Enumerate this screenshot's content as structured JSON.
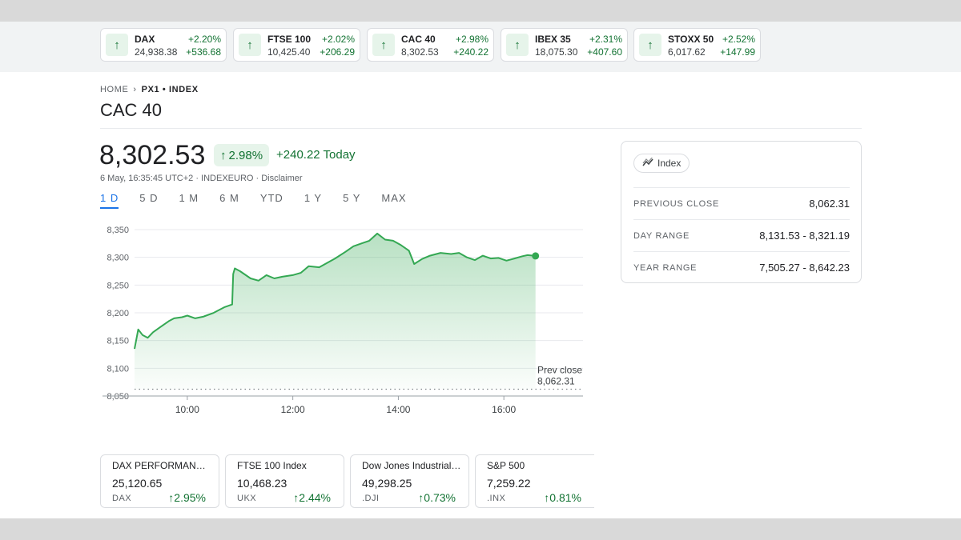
{
  "ticker": [
    {
      "name": "DAX",
      "value": "24,938.38",
      "pct": "+2.20%",
      "change": "+536.68"
    },
    {
      "name": "FTSE 100",
      "value": "10,425.40",
      "pct": "+2.02%",
      "change": "+206.29"
    },
    {
      "name": "CAC 40",
      "value": "8,302.53",
      "pct": "+2.98%",
      "change": "+240.22"
    },
    {
      "name": "IBEX 35",
      "value": "18,075.30",
      "pct": "+2.31%",
      "change": "+407.60"
    },
    {
      "name": "STOXX 50",
      "value": "6,017.62",
      "pct": "+2.52%",
      "change": "+147.99"
    }
  ],
  "breadcrumb": {
    "home": "HOME",
    "current": "PX1 • INDEX"
  },
  "title": "CAC 40",
  "quote": {
    "price": "8,302.53",
    "pct": "2.98%",
    "change_today": "+240.22 Today",
    "meta": "6 May, 16:35:45 UTC+2 · INDEXEURO · Disclaimer"
  },
  "ranges": [
    "1 D",
    "5 D",
    "1 M",
    "6 M",
    "YTD",
    "1 Y",
    "5 Y",
    "MAX"
  ],
  "active_range": "1 D",
  "chart_data": {
    "type": "area",
    "x_ticks": [
      "10:00",
      "12:00",
      "14:00",
      "16:00"
    ],
    "y_ticks": [
      8050,
      8100,
      8150,
      8200,
      8250,
      8300,
      8350
    ],
    "ylim": [
      8050,
      8350
    ],
    "xlim_hours": [
      9.0,
      17.5
    ],
    "prev_close": 8062.31,
    "prev_close_label": "Prev close",
    "prev_close_value_label": "8,062.31",
    "line_color": "#34a853",
    "x": [
      9.0,
      9.07,
      9.15,
      9.25,
      9.35,
      9.5,
      9.65,
      9.75,
      9.9,
      10.0,
      10.15,
      10.3,
      10.5,
      10.7,
      10.85,
      10.87,
      10.9,
      11.0,
      11.2,
      11.35,
      11.5,
      11.65,
      11.8,
      12.0,
      12.15,
      12.3,
      12.5,
      12.65,
      12.8,
      13.0,
      13.15,
      13.3,
      13.45,
      13.6,
      13.75,
      13.9,
      14.05,
      14.2,
      14.3,
      14.45,
      14.6,
      14.8,
      15.0,
      15.15,
      15.3,
      15.45,
      15.6,
      15.75,
      15.9,
      16.05,
      16.2,
      16.35,
      16.45,
      16.6
    ],
    "y": [
      8135,
      8170,
      8160,
      8155,
      8165,
      8175,
      8185,
      8190,
      8192,
      8195,
      8190,
      8193,
      8200,
      8210,
      8215,
      8270,
      8280,
      8275,
      8262,
      8258,
      8268,
      8262,
      8265,
      8268,
      8272,
      8284,
      8282,
      8290,
      8298,
      8310,
      8320,
      8325,
      8330,
      8343,
      8332,
      8330,
      8322,
      8312,
      8288,
      8297,
      8303,
      8308,
      8306,
      8308,
      8300,
      8295,
      8303,
      8298,
      8299,
      8294,
      8298,
      8302,
      8304,
      8302.53
    ]
  },
  "stats": {
    "chip_label": "Index",
    "rows": [
      {
        "label": "PREVIOUS CLOSE",
        "value": "8,062.31"
      },
      {
        "label": "DAY RANGE",
        "value": "8,131.53 - 8,321.19"
      },
      {
        "label": "YEAR RANGE",
        "value": "7,505.27 - 8,642.23"
      }
    ]
  },
  "markets": [
    {
      "name": "DAX PERFORMANCE-I...",
      "value": "25,120.65",
      "symbol": "DAX",
      "pct": "2.95%"
    },
    {
      "name": "FTSE 100 Index",
      "value": "10,468.23",
      "symbol": "UKX",
      "pct": "2.44%"
    },
    {
      "name": "Dow Jones Industrial A...",
      "value": "49,298.25",
      "symbol": ".DJI",
      "pct": "0.73%"
    },
    {
      "name": "S&P 500",
      "value": "7,259.22",
      "symbol": ".INX",
      "pct": "0.81%"
    }
  ],
  "colors": {
    "up": "#137333",
    "accent": "#1a73e8",
    "line": "#34a853"
  }
}
